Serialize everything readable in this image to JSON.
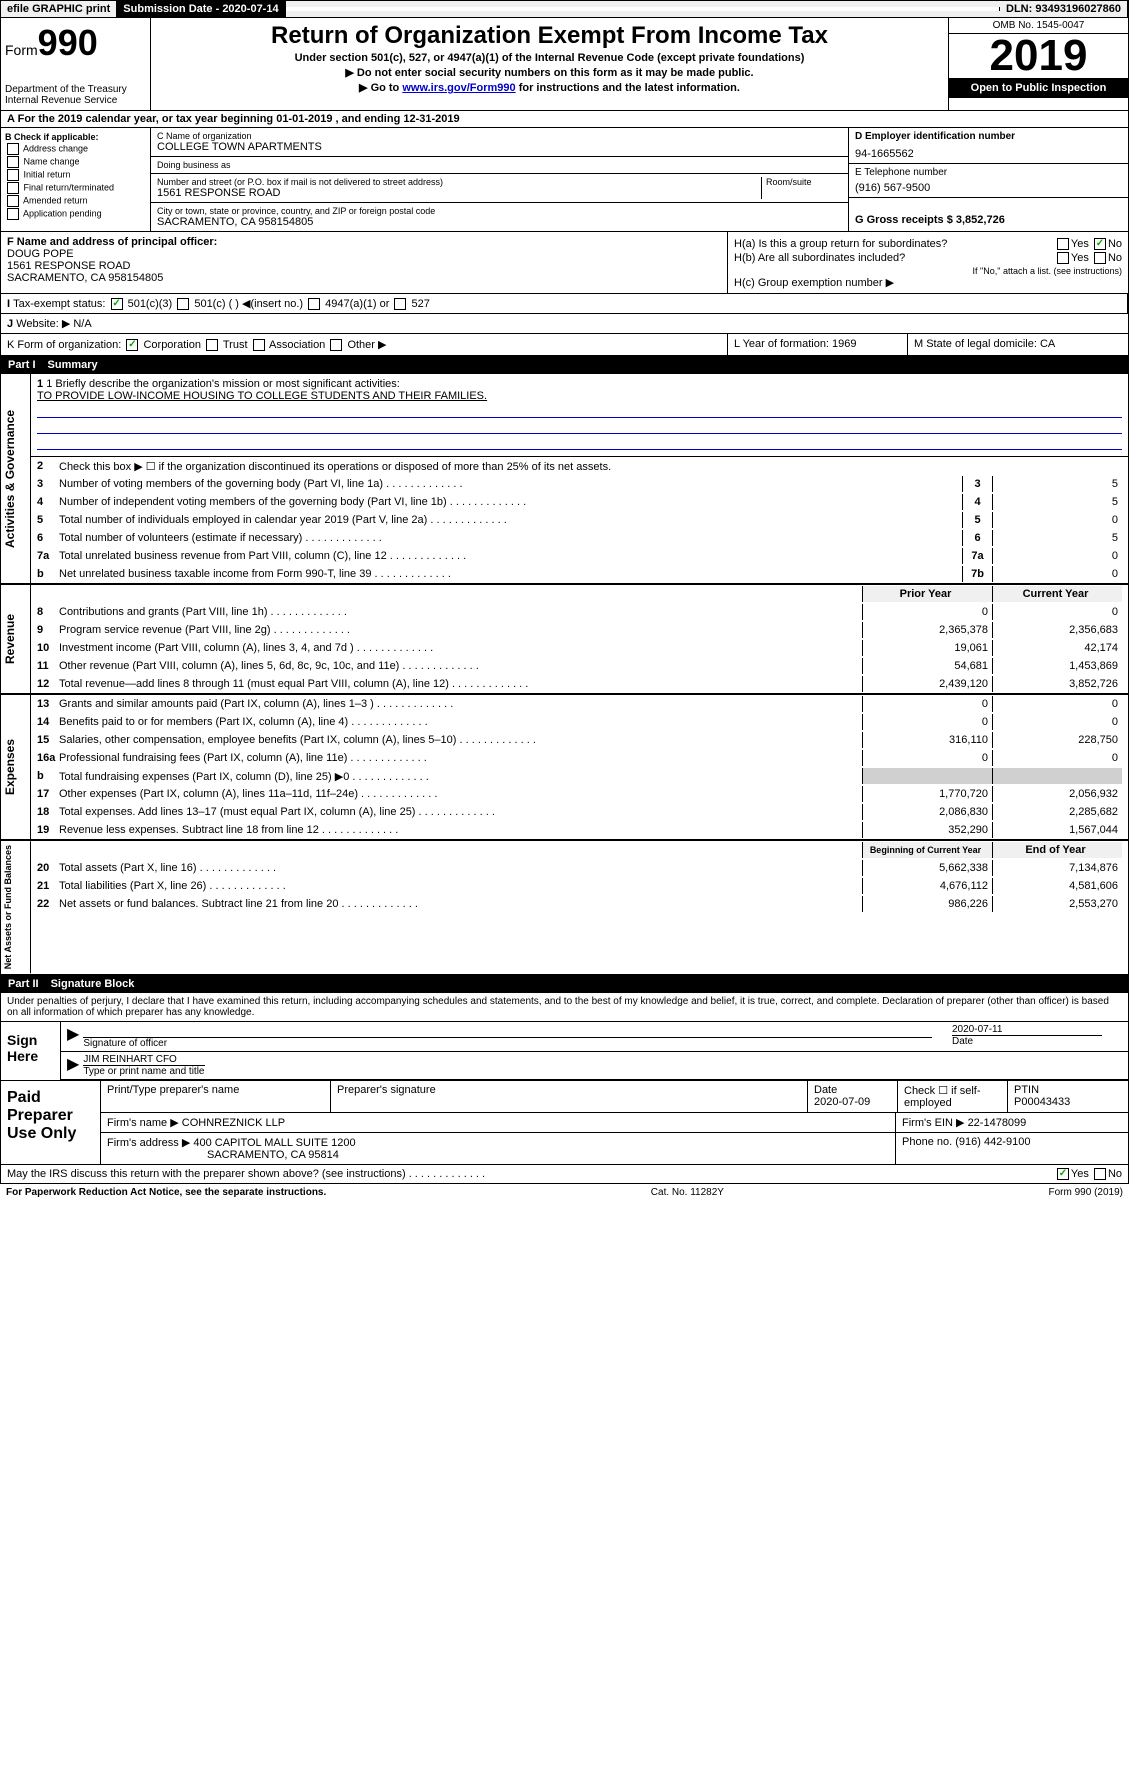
{
  "topbar": {
    "efile": "efile GRAPHIC print",
    "submission_label": "Submission Date - 2020-07-14",
    "dln": "DLN: 93493196027860"
  },
  "header": {
    "form_label": "Form",
    "form_number": "990",
    "dept": "Department of the Treasury Internal Revenue Service",
    "title": "Return of Organization Exempt From Income Tax",
    "subtitle1": "Under section 501(c), 527, or 4947(a)(1) of the Internal Revenue Code (except private foundations)",
    "subtitle2": "▶ Do not enter social security numbers on this form as it may be made public.",
    "subtitle3_pre": "▶ Go to ",
    "subtitle3_link": "www.irs.gov/Form990",
    "subtitle3_post": " for instructions and the latest information.",
    "omb": "OMB No. 1545-0047",
    "year": "2019",
    "open": "Open to Public Inspection"
  },
  "row_a": "For the 2019 calendar year, or tax year beginning 01-01-2019   , and ending 12-31-2019",
  "section_b": {
    "header": "B Check if applicable:",
    "opts": [
      "Address change",
      "Name change",
      "Initial return",
      "Final return/terminated",
      "Amended return",
      "Application pending"
    ]
  },
  "section_c": {
    "name_label": "C Name of organization",
    "name": "COLLEGE TOWN APARTMENTS",
    "dba_label": "Doing business as",
    "addr_label": "Number and street (or P.O. box if mail is not delivered to street address)",
    "room_label": "Room/suite",
    "addr": "1561 RESPONSE ROAD",
    "city_label": "City or town, state or province, country, and ZIP or foreign postal code",
    "city": "SACRAMENTO, CA  958154805"
  },
  "section_d": {
    "ein_label": "D Employer identification number",
    "ein": "94-1665562",
    "phone_label": "E Telephone number",
    "phone": "(916) 567-9500",
    "gross_label": "G Gross receipts $ 3,852,726"
  },
  "section_f": {
    "label": "F  Name and address of principal officer:",
    "name": "DOUG POPE",
    "addr1": "1561 RESPONSE ROAD",
    "addr2": "SACRAMENTO, CA  958154805"
  },
  "section_h": {
    "ha": "H(a)  Is this a group return for subordinates?",
    "hb": "H(b)  Are all subordinates included?",
    "hb_note": "If \"No,\" attach a list. (see instructions)",
    "hc": "H(c)  Group exemption number ▶",
    "yes": "Yes",
    "no": "No"
  },
  "row_i": {
    "label": "Tax-exempt status:",
    "opt1": "501(c)(3)",
    "opt2": "501(c) (  ) ◀(insert no.)",
    "opt3": "4947(a)(1) or",
    "opt4": "527"
  },
  "row_j": {
    "label": "Website: ▶",
    "val": "N/A"
  },
  "row_k": {
    "label": "K Form of organization:",
    "opts": [
      "Corporation",
      "Trust",
      "Association",
      "Other ▶"
    ],
    "l_label": "L Year of formation: 1969",
    "m_label": "M State of legal domicile: CA"
  },
  "part1": {
    "num": "Part I",
    "title": "Summary"
  },
  "summary": {
    "sections": [
      "Activities & Governance",
      "Revenue",
      "Expenses",
      "Net Assets or Fund Balances"
    ],
    "line1_label": "1  Briefly describe the organization's mission or most significant activities:",
    "line1_text": "TO PROVIDE LOW-INCOME HOUSING TO COLLEGE STUDENTS AND THEIR FAMILIES.",
    "line2": "Check this box ▶ ☐  if the organization discontinued its operations or disposed of more than 25% of its net assets.",
    "lines_gov": [
      {
        "n": "3",
        "d": "Number of voting members of the governing body (Part VI, line 1a)",
        "b": "3",
        "v": "5"
      },
      {
        "n": "4",
        "d": "Number of independent voting members of the governing body (Part VI, line 1b)",
        "b": "4",
        "v": "5"
      },
      {
        "n": "5",
        "d": "Total number of individuals employed in calendar year 2019 (Part V, line 2a)",
        "b": "5",
        "v": "0"
      },
      {
        "n": "6",
        "d": "Total number of volunteers (estimate if necessary)",
        "b": "6",
        "v": "5"
      },
      {
        "n": "7a",
        "d": "Total unrelated business revenue from Part VIII, column (C), line 12",
        "b": "7a",
        "v": "0"
      },
      {
        "n": "b",
        "d": "Net unrelated business taxable income from Form 990-T, line 39",
        "b": "7b",
        "v": "0"
      }
    ],
    "col_prior": "Prior Year",
    "col_current": "Current Year",
    "lines_rev": [
      {
        "n": "8",
        "d": "Contributions and grants (Part VIII, line 1h)",
        "p": "0",
        "c": "0"
      },
      {
        "n": "9",
        "d": "Program service revenue (Part VIII, line 2g)",
        "p": "2,365,378",
        "c": "2,356,683"
      },
      {
        "n": "10",
        "d": "Investment income (Part VIII, column (A), lines 3, 4, and 7d )",
        "p": "19,061",
        "c": "42,174"
      },
      {
        "n": "11",
        "d": "Other revenue (Part VIII, column (A), lines 5, 6d, 8c, 9c, 10c, and 11e)",
        "p": "54,681",
        "c": "1,453,869"
      },
      {
        "n": "12",
        "d": "Total revenue—add lines 8 through 11 (must equal Part VIII, column (A), line 12)",
        "p": "2,439,120",
        "c": "3,852,726"
      }
    ],
    "lines_exp": [
      {
        "n": "13",
        "d": "Grants and similar amounts paid (Part IX, column (A), lines 1–3 )",
        "p": "0",
        "c": "0"
      },
      {
        "n": "14",
        "d": "Benefits paid to or for members (Part IX, column (A), line 4)",
        "p": "0",
        "c": "0"
      },
      {
        "n": "15",
        "d": "Salaries, other compensation, employee benefits (Part IX, column (A), lines 5–10)",
        "p": "316,110",
        "c": "228,750"
      },
      {
        "n": "16a",
        "d": "Professional fundraising fees (Part IX, column (A), line 11e)",
        "p": "0",
        "c": "0"
      },
      {
        "n": "b",
        "d": "Total fundraising expenses (Part IX, column (D), line 25) ▶0",
        "p": "",
        "c": "",
        "shaded": true
      },
      {
        "n": "17",
        "d": "Other expenses (Part IX, column (A), lines 11a–11d, 11f–24e)",
        "p": "1,770,720",
        "c": "2,056,932"
      },
      {
        "n": "18",
        "d": "Total expenses. Add lines 13–17 (must equal Part IX, column (A), line 25)",
        "p": "2,086,830",
        "c": "2,285,682"
      },
      {
        "n": "19",
        "d": "Revenue less expenses. Subtract line 18 from line 12",
        "p": "352,290",
        "c": "1,567,044"
      }
    ],
    "col_begin": "Beginning of Current Year",
    "col_end": "End of Year",
    "lines_net": [
      {
        "n": "20",
        "d": "Total assets (Part X, line 16)",
        "p": "5,662,338",
        "c": "7,134,876"
      },
      {
        "n": "21",
        "d": "Total liabilities (Part X, line 26)",
        "p": "4,676,112",
        "c": "4,581,606"
      },
      {
        "n": "22",
        "d": "Net assets or fund balances. Subtract line 21 from line 20",
        "p": "986,226",
        "c": "2,553,270"
      }
    ]
  },
  "part2": {
    "num": "Part II",
    "title": "Signature Block"
  },
  "perjury": "Under penalties of perjury, I declare that I have examined this return, including accompanying schedules and statements, and to the best of my knowledge and belief, it is true, correct, and complete. Declaration of preparer (other than officer) is based on all information of which preparer has any knowledge.",
  "sig": {
    "here": "Sign Here",
    "officer": "Signature of officer",
    "date": "2020-07-11",
    "date_label": "Date",
    "name": "JIM REINHART CFO",
    "name_label": "Type or print name and title"
  },
  "preparer": {
    "label": "Paid Preparer Use Only",
    "name_label": "Print/Type preparer's name",
    "sig_label": "Preparer's signature",
    "date_label": "Date",
    "date": "2020-07-09",
    "self_label": "Check ☐ if self-employed",
    "ptin_label": "PTIN",
    "ptin": "P00043433",
    "firm_label": "Firm's name    ▶",
    "firm": "COHNREZNICK LLP",
    "ein_label": "Firm's EIN ▶",
    "ein": "22-1478099",
    "addr_label": "Firm's address ▶",
    "addr1": "400 CAPITOL MALL SUITE 1200",
    "addr2": "SACRAMENTO, CA  95814",
    "phone_label": "Phone no.",
    "phone": "(916) 442-9100"
  },
  "bottom": {
    "q": "May the IRS discuss this return with the preparer shown above? (see instructions)",
    "yes": "Yes",
    "no": "No"
  },
  "footer": {
    "left": "For Paperwork Reduction Act Notice, see the separate instructions.",
    "mid": "Cat. No. 11282Y",
    "right": "Form 990 (2019)"
  }
}
